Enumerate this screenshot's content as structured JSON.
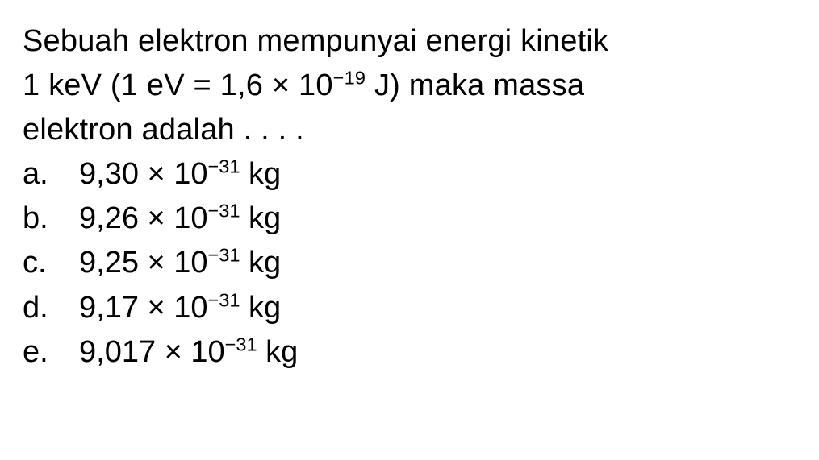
{
  "document": {
    "background_color": "#ffffff",
    "text_color": "#000000",
    "font_family": "Arial, Helvetica, sans-serif",
    "font_size_pt": 29,
    "line_height": 1.45
  },
  "question": {
    "line1": "Sebuah elektron mempunyai energi kinetik",
    "line2_pre": "1 keV (1 eV = 1,6 × 10",
    "line2_exp": "−19",
    "line2_post": " J) maka massa",
    "line3": "elektron adalah . . . ."
  },
  "options": [
    {
      "label": "a.",
      "pre": "9,30 × 10",
      "exp": "−31",
      "post": " kg"
    },
    {
      "label": "b.",
      "pre": "9,26 × 10",
      "exp": "−31",
      "post": " kg"
    },
    {
      "label": "c.",
      "pre": "9,25 × 10",
      "exp": "−31",
      "post": " kg"
    },
    {
      "label": "d.",
      "pre": "9,17 × 10",
      "exp": "−31",
      "post": " kg"
    },
    {
      "label": "e.",
      "pre": "9,017 × 10",
      "exp": "−31",
      "post": " kg"
    }
  ]
}
